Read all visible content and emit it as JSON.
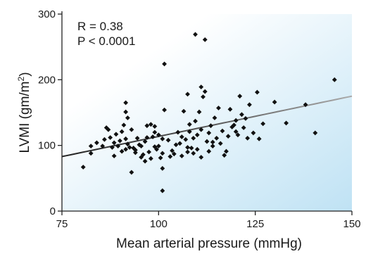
{
  "chart_data": {
    "type": "scatter",
    "title": "",
    "xlabel": "Mean arterial pressure (mmHg)",
    "ylabel_main": "LVMI (gm/m",
    "ylabel_sup": "2",
    "ylabel_tail": ")",
    "xlim": [
      75,
      150
    ],
    "ylim": [
      0,
      300
    ],
    "xticks": [
      75,
      100,
      125,
      150
    ],
    "yticks": [
      0,
      100,
      200,
      300
    ],
    "xtick_labels": [
      "75",
      "100",
      "125",
      "150"
    ],
    "ytick_labels": [
      "0",
      "100",
      "200",
      "300"
    ],
    "annotations": [
      "R = 0.38",
      "P < 0.0001"
    ],
    "grid": false,
    "colors": {
      "points": "#111111",
      "fit_line": "#333333",
      "background_gradient": "#cfe9f6"
    },
    "fit_line": {
      "x": [
        75,
        150
      ],
      "y": [
        83,
        175
      ]
    },
    "points": [
      [
        80.5,
        67
      ],
      [
        82.5,
        88
      ],
      [
        82.5,
        99
      ],
      [
        84,
        104
      ],
      [
        85.5,
        99
      ],
      [
        86,
        109
      ],
      [
        86.5,
        127
      ],
      [
        87,
        124
      ],
      [
        87.5,
        112
      ],
      [
        88,
        97
      ],
      [
        88.5,
        104
      ],
      [
        88.5,
        84
      ],
      [
        89,
        117
      ],
      [
        89.5,
        99
      ],
      [
        90,
        107
      ],
      [
        90.5,
        91
      ],
      [
        90.5,
        121
      ],
      [
        91,
        131
      ],
      [
        91.5,
        110
      ],
      [
        91.5,
        94
      ],
      [
        91.5,
        151
      ],
      [
        91.5,
        165
      ],
      [
        92,
        142
      ],
      [
        92,
        102
      ],
      [
        92.5,
        97
      ],
      [
        93,
        124
      ],
      [
        93,
        59
      ],
      [
        93.5,
        96
      ],
      [
        94,
        93
      ],
      [
        94,
        89
      ],
      [
        94.5,
        111
      ],
      [
        95,
        101
      ],
      [
        95.5,
        99
      ],
      [
        95.5,
        82
      ],
      [
        96,
        86
      ],
      [
        96.5,
        106
      ],
      [
        96.5,
        76
      ],
      [
        97,
        112
      ],
      [
        97,
        130
      ],
      [
        97.5,
        90
      ],
      [
        98,
        132
      ],
      [
        98,
        80
      ],
      [
        98.5,
        113
      ],
      [
        99,
        120
      ],
      [
        99,
        129
      ],
      [
        99,
        98
      ],
      [
        99.5,
        94
      ],
      [
        100,
        99
      ],
      [
        100,
        116
      ],
      [
        100.5,
        81
      ],
      [
        101,
        88
      ],
      [
        101,
        110
      ],
      [
        101,
        65
      ],
      [
        101,
        31
      ],
      [
        101.5,
        154
      ],
      [
        101.5,
        224
      ],
      [
        102.5,
        108
      ],
      [
        103,
        83
      ],
      [
        103.5,
        92
      ],
      [
        104,
        87
      ],
      [
        104.5,
        101
      ],
      [
        105,
        120
      ],
      [
        105.5,
        103
      ],
      [
        106,
        113
      ],
      [
        106,
        84
      ],
      [
        106.5,
        152
      ],
      [
        107,
        109
      ],
      [
        107.5,
        90
      ],
      [
        107.5,
        178
      ],
      [
        107.5,
        97
      ],
      [
        108,
        132
      ],
      [
        108,
        121
      ],
      [
        108.5,
        96
      ],
      [
        109,
        111
      ],
      [
        109,
        88
      ],
      [
        109.5,
        269
      ],
      [
        109.5,
        137
      ],
      [
        110,
        116
      ],
      [
        110,
        94
      ],
      [
        110.5,
        151
      ],
      [
        111,
        189
      ],
      [
        111,
        124
      ],
      [
        111,
        82
      ],
      [
        111.5,
        174
      ],
      [
        112,
        182
      ],
      [
        112,
        261
      ],
      [
        112.5,
        106
      ],
      [
        113,
        91
      ],
      [
        113,
        119
      ],
      [
        113.5,
        130
      ],
      [
        114,
        105
      ],
      [
        114,
        99
      ],
      [
        114.5,
        142
      ],
      [
        115,
        111
      ],
      [
        115.5,
        157
      ],
      [
        116,
        103
      ],
      [
        116.5,
        122
      ],
      [
        117,
        85
      ],
      [
        117.5,
        91
      ],
      [
        118,
        114
      ],
      [
        118.5,
        155
      ],
      [
        119,
        128
      ],
      [
        119.5,
        131
      ],
      [
        120,
        121
      ],
      [
        120,
        138
      ],
      [
        120.5,
        116
      ],
      [
        121,
        175
      ],
      [
        121.5,
        147
      ],
      [
        122,
        127
      ],
      [
        122.5,
        141
      ],
      [
        123,
        111
      ],
      [
        123.5,
        162
      ],
      [
        124.5,
        119
      ],
      [
        125.5,
        181
      ],
      [
        126,
        110
      ],
      [
        127,
        133
      ],
      [
        130,
        166
      ],
      [
        133,
        134
      ],
      [
        138,
        162
      ],
      [
        140.5,
        119
      ],
      [
        145.5,
        200
      ]
    ]
  }
}
